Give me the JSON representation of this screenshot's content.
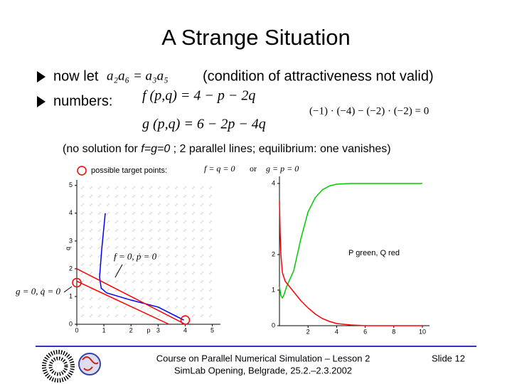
{
  "title": "A Strange Situation",
  "bullets": [
    {
      "text": "now let",
      "formula": "a₂a₆ = a₃a₅",
      "note": "(condition of attractiveness not valid)"
    },
    {
      "text": "numbers:",
      "formulas": [
        "f (p,q) = 4 − p − 2q",
        "g (p,q) = 6 − 2p − 4q"
      ],
      "note": "(−1) · (−4) − (−2) · (−2) = 0"
    }
  ],
  "remark": [
    "(no solution for ",
    "f=g=0",
    " ; 2 parallel lines; equilibrium: one vanishes)"
  ],
  "equilibria": [
    "f = q = 0",
    "or",
    "g = p = 0"
  ],
  "chart_data": [
    {
      "type": "line",
      "x_label": "p",
      "y_label": "q",
      "xlim": [
        0,
        5.3
      ],
      "ylim": [
        0,
        5.2
      ],
      "xticks": [
        0,
        1,
        2,
        3,
        4,
        5
      ],
      "yticks": [
        0,
        1,
        2,
        3,
        4,
        5
      ],
      "series": [
        {
          "color": "#0000ff",
          "x": [
            1.05,
            0.92,
            0.84,
            0.9,
            1.1,
            2.0,
            3.0,
            3.95
          ],
          "values": [
            4.0,
            2.7,
            1.7,
            1.3,
            1.13,
            0.87,
            0.62,
            0.15
          ]
        },
        {
          "color": "#ff0000",
          "x": [
            0,
            4
          ],
          "values": [
            2,
            0
          ]
        },
        {
          "color": "#ff0000",
          "x": [
            0,
            3.4
          ],
          "values": [
            1.55,
            0
          ]
        },
        {
          "name": "possible target points:",
          "type": "scatter",
          "color": "#ff0000",
          "x": [
            0,
            4
          ],
          "values": [
            1.5,
            0.15
          ]
        }
      ],
      "annotations": [
        "f = 0, ṗ = 0",
        "g = 0, q̇ = 0"
      ]
    },
    {
      "type": "line",
      "xlim": [
        0,
        10.5
      ],
      "ylim": [
        0,
        4.2
      ],
      "xticks": [
        2,
        4,
        6,
        8,
        10
      ],
      "yticks": [
        0,
        1,
        2,
        4
      ],
      "series": [
        {
          "color": "#00cc00",
          "x": [
            0,
            0.1,
            0.2,
            0.3,
            0.5,
            1,
            1.5,
            2,
            2.5,
            3,
            3.5,
            4,
            5,
            6,
            8,
            10
          ],
          "values": [
            1.1,
            0.85,
            0.78,
            0.85,
            1.1,
            1.55,
            2.45,
            3.2,
            3.6,
            3.82,
            3.93,
            3.98,
            4.0,
            4.0,
            4.0,
            4.0
          ]
        },
        {
          "color": "#ff0000",
          "x": [
            0,
            0.05,
            0.1,
            0.2,
            0.4,
            0.7,
            1.0,
            1.5,
            2.0,
            2.5,
            3.0,
            3.5,
            4.0,
            5.0,
            6.0,
            10.0
          ],
          "values": [
            3.5,
            2.6,
            2.0,
            1.5,
            1.25,
            1.1,
            0.95,
            0.7,
            0.5,
            0.33,
            0.2,
            0.12,
            0.06,
            0.02,
            0.0,
            0.0
          ]
        }
      ],
      "annotations": [
        "P green, Q red"
      ]
    }
  ],
  "footer": {
    "lines": [
      "Course on Parallel Numerical Simulation – Lesson 2",
      "SimLab Opening, Belgrade, 25.2.–2.3.2002"
    ],
    "slide": "Slide 12"
  }
}
